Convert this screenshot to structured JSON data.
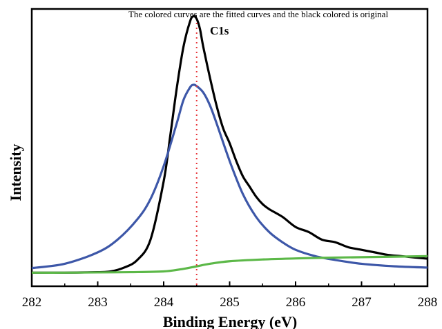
{
  "chart_data": {
    "type": "line",
    "title": "",
    "annotation": "The colored curves are the fitted curves and the black colored is original",
    "peak_label": "C1s",
    "xlabel": "Binding Energy (eV)",
    "ylabel": "Intensity",
    "xlim": [
      282,
      288
    ],
    "ylim": [
      0,
      1.05
    ],
    "x_ticks": [
      "282",
      "283",
      "284",
      "285",
      "286",
      "287",
      "288"
    ],
    "grid": false,
    "reference_line": {
      "x": 284.5,
      "color": "#e8383d",
      "style": "dotted"
    },
    "series": [
      {
        "color": "#000000",
        "x": [
          282,
          282.5,
          283,
          283.2,
          283.4,
          283.6,
          283.8,
          284.0,
          284.1,
          284.2,
          284.3,
          284.4,
          284.45,
          284.5,
          284.55,
          284.6,
          284.7,
          284.8,
          284.9,
          285.0,
          285.1,
          285.2,
          285.3,
          285.4,
          285.5,
          285.6,
          285.8,
          286.0,
          286.2,
          286.4,
          286.6,
          286.8,
          287.0,
          287.2,
          287.4,
          287.6,
          287.8,
          288.0
        ],
        "y": [
          0.01,
          0.01,
          0.012,
          0.015,
          0.03,
          0.06,
          0.14,
          0.37,
          0.55,
          0.74,
          0.9,
          1.0,
          1.02,
          1.01,
          0.97,
          0.9,
          0.78,
          0.67,
          0.58,
          0.52,
          0.45,
          0.39,
          0.35,
          0.31,
          0.28,
          0.26,
          0.23,
          0.19,
          0.17,
          0.14,
          0.13,
          0.11,
          0.1,
          0.09,
          0.08,
          0.075,
          0.07,
          0.065
        ]
      },
      {
        "color": "#3d57a8",
        "x": [
          282,
          282.5,
          283,
          283.3,
          283.6,
          283.8,
          284.0,
          284.2,
          284.3,
          284.4,
          284.45,
          284.5,
          284.6,
          284.7,
          284.8,
          285.0,
          285.2,
          285.4,
          285.6,
          285.8,
          286.0,
          286.3,
          286.6,
          287.0,
          287.5,
          288.0
        ],
        "y": [
          0.028,
          0.045,
          0.09,
          0.14,
          0.22,
          0.3,
          0.43,
          0.6,
          0.69,
          0.74,
          0.75,
          0.745,
          0.72,
          0.67,
          0.6,
          0.45,
          0.32,
          0.23,
          0.17,
          0.13,
          0.1,
          0.075,
          0.06,
          0.045,
          0.035,
          0.03
        ]
      },
      {
        "color": "#5cb848",
        "x": [
          282,
          282.5,
          283,
          283.5,
          284.0,
          284.3,
          284.5,
          284.7,
          285.0,
          285.5,
          286.0,
          286.5,
          287.0,
          287.5,
          288.0
        ],
        "y": [
          0.01,
          0.01,
          0.011,
          0.012,
          0.015,
          0.025,
          0.035,
          0.045,
          0.055,
          0.062,
          0.066,
          0.069,
          0.071,
          0.073,
          0.075
        ]
      }
    ]
  }
}
